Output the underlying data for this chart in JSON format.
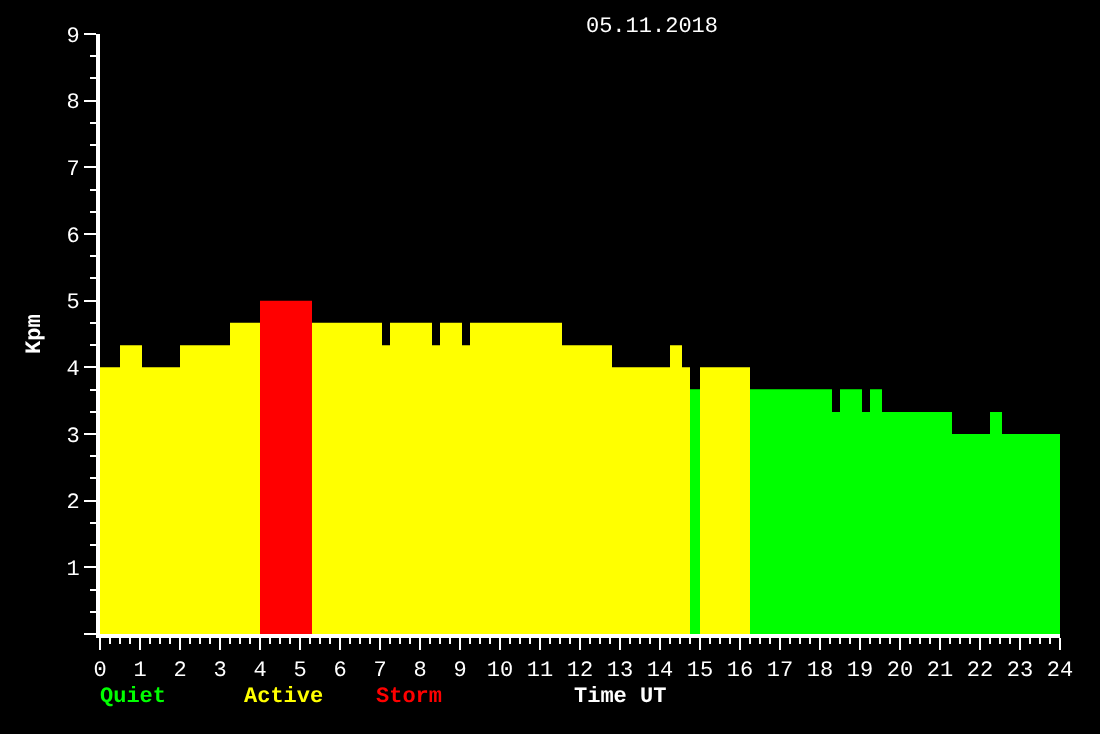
{
  "chart_data": {
    "type": "bar",
    "title": "05.11.2018",
    "xlabel": "Time UT",
    "ylabel": "Kpm",
    "x": [
      0.25,
      0.775,
      1.525,
      2.625,
      3.625,
      4.65,
      6.175,
      7.15,
      7.775,
      8.4,
      8.775,
      9.15,
      10.4,
      12.175,
      13.525,
      14.4,
      14.65,
      14.875,
      15.625,
      17.275,
      18.4,
      18.775,
      19.15,
      19.4,
      20.425,
      21.775,
      22.4,
      23.275
    ],
    "series": [
      {
        "name": "Quiet",
        "color": "#00ff00",
        "values": [
          null,
          null,
          null,
          null,
          null,
          null,
          null,
          null,
          null,
          null,
          null,
          null,
          null,
          null,
          null,
          null,
          null,
          3.67,
          null,
          3.67,
          3.33,
          3.67,
          3.33,
          3.67,
          3.33,
          3,
          3.33,
          3
        ]
      },
      {
        "name": "Active",
        "color": "#ffff00",
        "values": [
          4,
          4.33,
          4,
          4.33,
          4.67,
          null,
          4.67,
          4.33,
          4.67,
          4.33,
          4.67,
          4.33,
          4.67,
          4.33,
          4,
          4.33,
          4,
          null,
          4,
          null,
          null,
          null,
          null,
          null,
          null,
          null,
          null,
          null
        ]
      },
      {
        "name": "Storm",
        "color": "#ff0000",
        "values": [
          null,
          null,
          null,
          null,
          null,
          5,
          null,
          null,
          null,
          null,
          null,
          null,
          null,
          null,
          null,
          null,
          null,
          null,
          null,
          null,
          null,
          null,
          null,
          null,
          null,
          null,
          null,
          null
        ]
      }
    ],
    "xlim": [
      0,
      24
    ],
    "xticks": [
      0,
      1,
      2,
      3,
      4,
      5,
      6,
      7,
      8,
      9,
      10,
      11,
      12,
      13,
      14,
      15,
      16,
      17,
      18,
      19,
      20,
      21,
      22,
      23,
      24
    ],
    "ylim": [
      0,
      9
    ],
    "yticks": [
      {
        "value": 0,
        "label": null
      },
      1,
      2,
      3,
      4,
      5,
      6,
      7,
      8,
      9
    ],
    "grid": false,
    "legend": "bottom"
  }
}
